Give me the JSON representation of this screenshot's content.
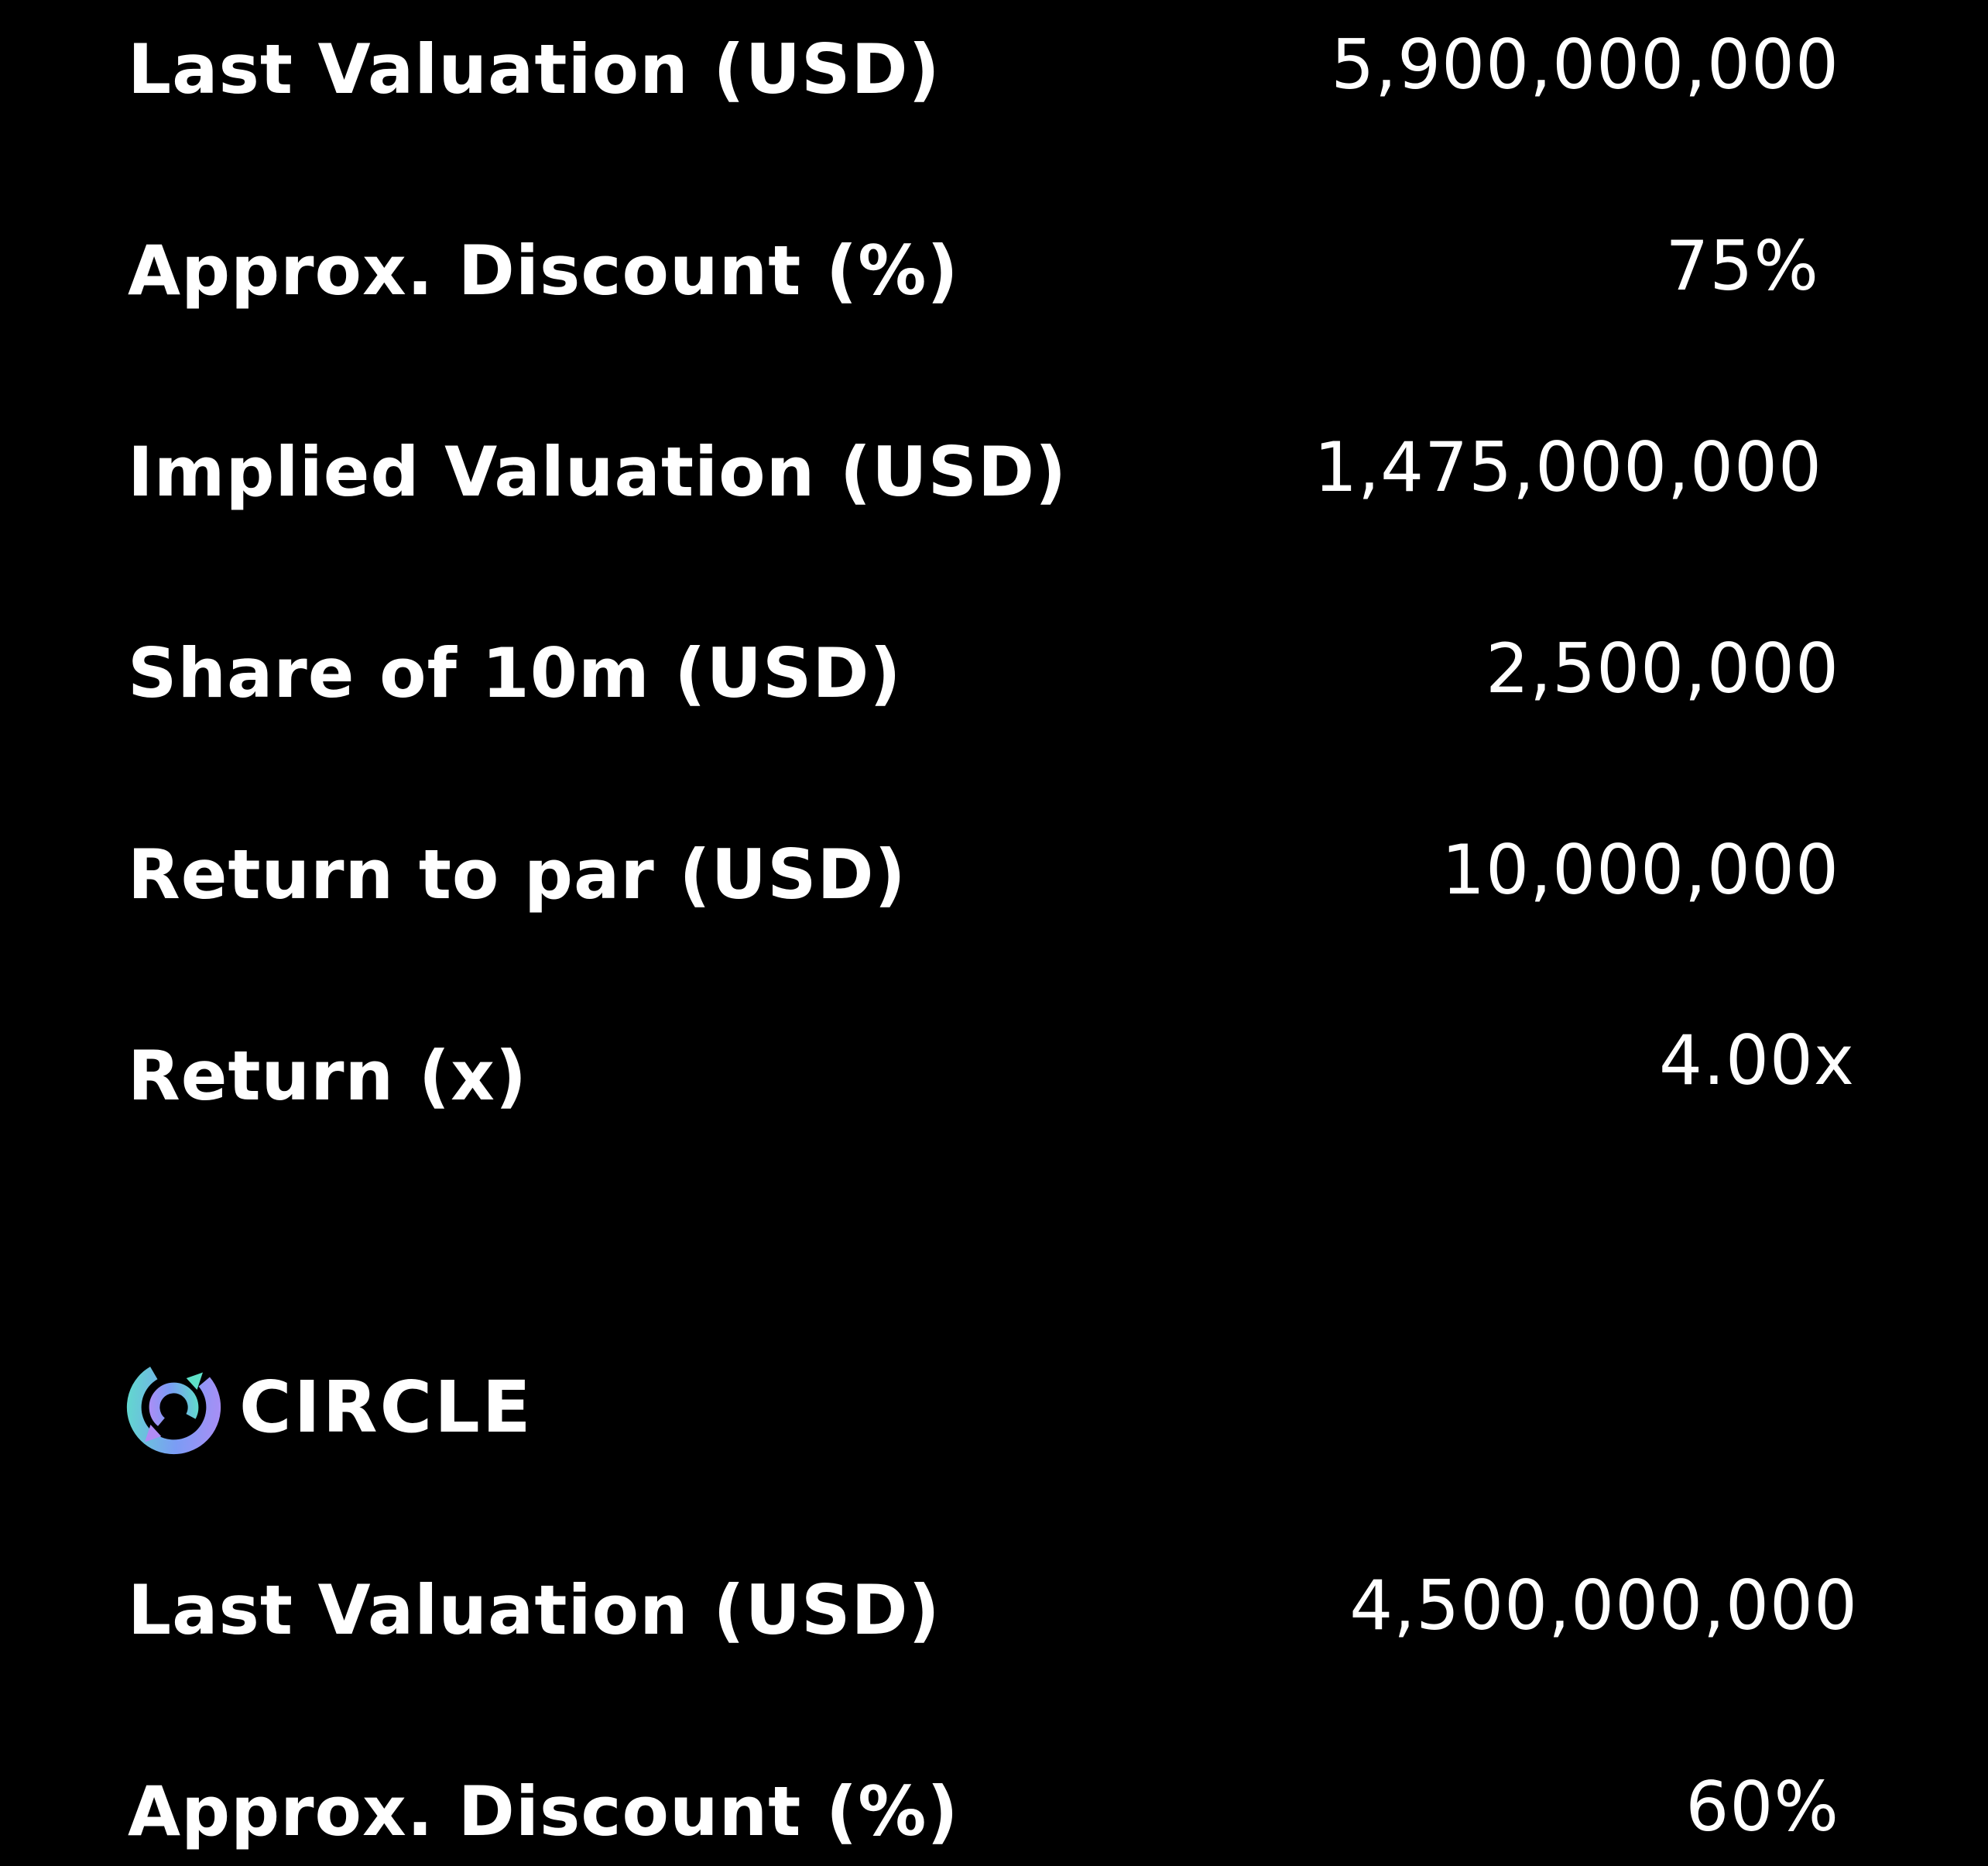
{
  "section1": {
    "rows": [
      {
        "label": "Last Valuation (USD)",
        "value": "5,900,000,000"
      },
      {
        "label": "Approx. Discount (%)",
        "value": "75%"
      },
      {
        "label": "Implied Valuation (USD)",
        "value": "1,475,000,000"
      },
      {
        "label": "Share of 10m (USD)",
        "value": "2,500,000"
      },
      {
        "label": "Return to par (USD)",
        "value": "10,000,000"
      },
      {
        "label": "Return (x)",
        "value": "4.00x"
      }
    ]
  },
  "section2": {
    "brand": {
      "name": "CIRCLE",
      "logo_icon": "circle-logo-icon",
      "logo_colors": [
        "#5ee1c8",
        "#7b9cf5",
        "#b18cf5"
      ]
    },
    "rows": [
      {
        "label": "Last Valuation (USD)",
        "value": "4,500,000,000"
      },
      {
        "label": "Approx. Discount (%)",
        "value": "60%"
      }
    ]
  }
}
